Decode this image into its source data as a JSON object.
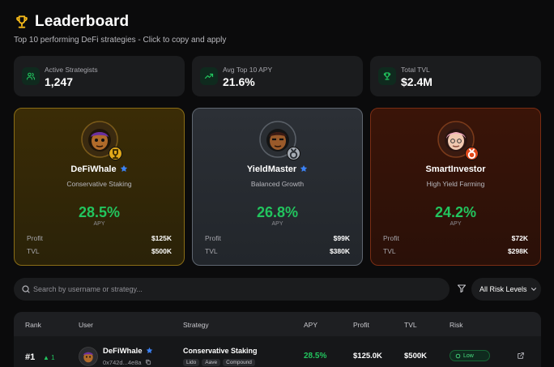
{
  "header": {
    "title": "Leaderboard",
    "subtitle": "Top 10 performing DeFi strategies - Click to copy and apply"
  },
  "stats": [
    {
      "label": "Active Strategists",
      "value": "1,247",
      "icon": "users-icon"
    },
    {
      "label": "Avg Top 10 APY",
      "value": "21.6%",
      "icon": "trending-up-icon"
    },
    {
      "label": "Total TVL",
      "value": "$2.4M",
      "icon": "trophy-icon"
    }
  ],
  "podium": [
    {
      "name": "DeFiWhale",
      "strategy": "Conservative Staking",
      "apy": "28.5%",
      "apy_label": "APY",
      "profit_label": "Profit",
      "profit": "$125K",
      "tvl_label": "TVL",
      "tvl": "$500K",
      "medal": "gold"
    },
    {
      "name": "YieldMaster",
      "strategy": "Balanced Growth",
      "apy": "26.8%",
      "apy_label": "APY",
      "profit_label": "Profit",
      "profit": "$99K",
      "tvl_label": "TVL",
      "tvl": "$380K",
      "medal": "silver"
    },
    {
      "name": "SmartInvestor",
      "strategy": "High Yield Farming",
      "apy": "24.2%",
      "apy_label": "APY",
      "profit_label": "Profit",
      "profit": "$72K",
      "tvl_label": "TVL",
      "tvl": "$298K",
      "medal": "bronze"
    }
  ],
  "search": {
    "placeholder": "Search by username or strategy..."
  },
  "risk_filter": {
    "selected": "All Risk Levels"
  },
  "table": {
    "columns": [
      "Rank",
      "User",
      "Strategy",
      "APY",
      "Profit",
      "TVL",
      "Risk"
    ],
    "rows": [
      {
        "rank": "#1",
        "change": "1",
        "user": "DeFiWhale",
        "address": "0x742d...4e8a",
        "strategy": "Conservative Staking",
        "tags": [
          "Lido",
          "Aave",
          "Compound"
        ],
        "apy": "28.5%",
        "profit": "$125.0K",
        "tvl": "$500K",
        "risk": "Low"
      }
    ]
  },
  "colors": {
    "accent": "#22c55e",
    "gold": "#e0a81a",
    "silver": "#a7adb5",
    "bronze": "#e0481a",
    "verified": "#3b82f6"
  }
}
